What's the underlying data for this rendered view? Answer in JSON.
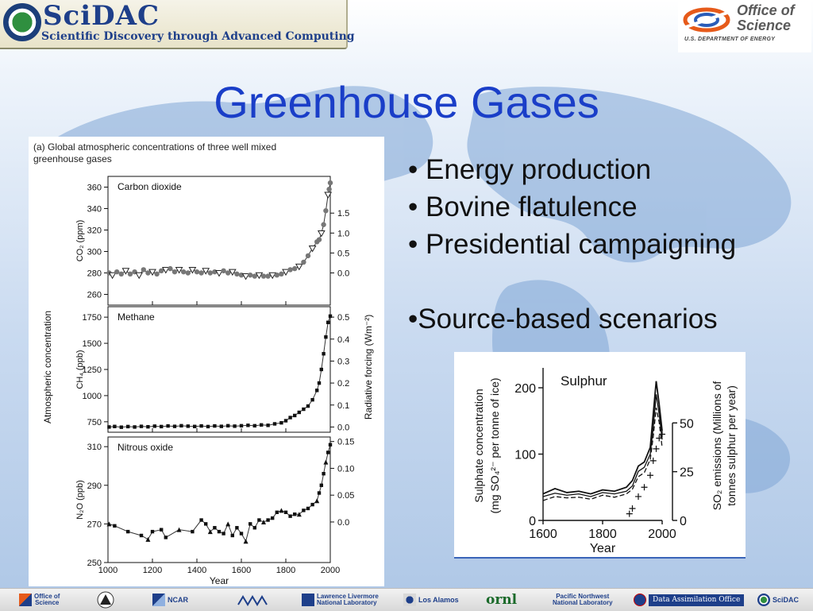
{
  "header": {
    "left_logo_title": "SciDAC",
    "left_logo_subtitle": "Scientific Discovery through Advanced Computing",
    "right_logo_title": "Office of Science",
    "right_logo_subtitle": "U.S. DEPARTMENT OF ENERGY"
  },
  "slide": {
    "title": "Greenhouse Gases",
    "bullets": [
      "• Energy production",
      "• Bovine flatulence",
      "• Presidential campaigning"
    ],
    "extra_bullet": "•Source-based scenarios"
  },
  "chart_data": [
    {
      "type": "scatter",
      "title": "(a) Global atmospheric concentrations of three well mixed greenhouse gases",
      "xlabel": "Year",
      "xlim": [
        1000,
        2000
      ],
      "x_ticks": [
        1000,
        1200,
        1400,
        1600,
        1800,
        2000
      ],
      "shared_ylabel": "Atmospheric concentration",
      "shared_y2label": "Radiative forcing (Wm⁻²)",
      "panels": [
        {
          "name": "Carbon dioxide",
          "ylabel": "CO₂ (ppm)",
          "ylim": [
            250,
            370
          ],
          "y_ticks": [
            260,
            280,
            300,
            320,
            340,
            360
          ],
          "y2_ticks": [
            "0.0",
            "0.5",
            "1.0",
            "1.5"
          ],
          "y2_values": [
            0.0,
            0.5,
            1.0,
            1.5
          ],
          "y2_zero_at": 280,
          "y2_per_unit": 0.0269,
          "color": "#777777",
          "points": [
            [
              1005,
              280
            ],
            [
              1020,
              278
            ],
            [
              1040,
              281
            ],
            [
              1060,
              279
            ],
            [
              1080,
              282
            ],
            [
              1100,
              279
            ],
            [
              1120,
              281
            ],
            [
              1140,
              278
            ],
            [
              1160,
              283
            ],
            [
              1180,
              280
            ],
            [
              1200,
              281
            ],
            [
              1220,
              279
            ],
            [
              1240,
              282
            ],
            [
              1260,
              283
            ],
            [
              1280,
              284
            ],
            [
              1300,
              281
            ],
            [
              1320,
              283
            ],
            [
              1340,
              281
            ],
            [
              1360,
              280
            ],
            [
              1380,
              283
            ],
            [
              1400,
              281
            ],
            [
              1420,
              280
            ],
            [
              1440,
              282
            ],
            [
              1460,
              280
            ],
            [
              1480,
              281
            ],
            [
              1500,
              280
            ],
            [
              1520,
              282
            ],
            [
              1540,
              280
            ],
            [
              1560,
              281
            ],
            [
              1580,
              279
            ],
            [
              1600,
              278
            ],
            [
              1620,
              277
            ],
            [
              1640,
              278
            ],
            [
              1660,
              277
            ],
            [
              1680,
              278
            ],
            [
              1700,
              277
            ],
            [
              1720,
              277
            ],
            [
              1740,
              278
            ],
            [
              1760,
              278
            ],
            [
              1780,
              279
            ],
            [
              1800,
              281
            ],
            [
              1820,
              283
            ],
            [
              1840,
              284
            ],
            [
              1860,
              286
            ],
            [
              1880,
              290
            ],
            [
              1900,
              296
            ],
            [
              1920,
              303
            ],
            [
              1940,
              309
            ],
            [
              1950,
              311
            ],
            [
              1960,
              317
            ],
            [
              1970,
              325
            ],
            [
              1980,
              338
            ],
            [
              1990,
              353
            ],
            [
              1995,
              358
            ],
            [
              2000,
              364
            ]
          ]
        },
        {
          "name": "Methane",
          "ylabel": "CH₄ (ppb)",
          "ylim": [
            650,
            1850
          ],
          "y_ticks": [
            750,
            1000,
            1250,
            1500,
            1750
          ],
          "y2_ticks": [
            "0.0",
            "0.1",
            "0.2",
            "0.3",
            "0.4",
            "0.5"
          ],
          "y2_values": [
            0.0,
            0.1,
            0.2,
            0.3,
            0.4,
            0.5
          ],
          "y2_zero_at": 700,
          "y2_per_unit": 0.000476,
          "color": "#111111",
          "points": [
            [
              1005,
              700
            ],
            [
              1030,
              705
            ],
            [
              1060,
              698
            ],
            [
              1090,
              704
            ],
            [
              1120,
              700
            ],
            [
              1150,
              706
            ],
            [
              1180,
              702
            ],
            [
              1210,
              708
            ],
            [
              1240,
              704
            ],
            [
              1270,
              710
            ],
            [
              1300,
              706
            ],
            [
              1330,
              712
            ],
            [
              1360,
              708
            ],
            [
              1390,
              705
            ],
            [
              1420,
              710
            ],
            [
              1450,
              704
            ],
            [
              1480,
              710
            ],
            [
              1510,
              706
            ],
            [
              1540,
              712
            ],
            [
              1570,
              708
            ],
            [
              1600,
              712
            ],
            [
              1630,
              716
            ],
            [
              1660,
              712
            ],
            [
              1690,
              720
            ],
            [
              1720,
              716
            ],
            [
              1750,
              730
            ],
            [
              1780,
              740
            ],
            [
              1800,
              760
            ],
            [
              1820,
              790
            ],
            [
              1840,
              810
            ],
            [
              1860,
              840
            ],
            [
              1880,
              870
            ],
            [
              1900,
              900
            ],
            [
              1920,
              960
            ],
            [
              1940,
              1050
            ],
            [
              1950,
              1120
            ],
            [
              1960,
              1250
            ],
            [
              1970,
              1400
            ],
            [
              1980,
              1560
            ],
            [
              1990,
              1700
            ],
            [
              2000,
              1760
            ]
          ]
        },
        {
          "name": "Nitrous oxide",
          "ylabel": "N₂O (ppb)",
          "ylim": [
            250,
            315
          ],
          "y_ticks": [
            250,
            270,
            290,
            310
          ],
          "y2_ticks": [
            "0.0",
            "0.05",
            "0.10",
            "0.15"
          ],
          "y2_values": [
            0.0,
            0.05,
            0.1,
            0.15
          ],
          "y2_zero_at": 271,
          "y2_per_unit": 0.0036,
          "color": "#111111",
          "points": [
            [
              1005,
              270
            ],
            [
              1030,
              269
            ],
            [
              1090,
              266
            ],
            [
              1150,
              264
            ],
            [
              1180,
              262
            ],
            [
              1200,
              266
            ],
            [
              1240,
              267
            ],
            [
              1260,
              263
            ],
            [
              1320,
              267
            ],
            [
              1380,
              266
            ],
            [
              1420,
              272
            ],
            [
              1440,
              270
            ],
            [
              1460,
              266
            ],
            [
              1480,
              268
            ],
            [
              1500,
              266
            ],
            [
              1520,
              265
            ],
            [
              1540,
              270
            ],
            [
              1560,
              264
            ],
            [
              1580,
              268
            ],
            [
              1600,
              265
            ],
            [
              1620,
              261
            ],
            [
              1640,
              270
            ],
            [
              1660,
              268
            ],
            [
              1680,
              272
            ],
            [
              1700,
              271
            ],
            [
              1720,
              272
            ],
            [
              1740,
              273
            ],
            [
              1760,
              276
            ],
            [
              1780,
              277
            ],
            [
              1800,
              276
            ],
            [
              1820,
              274
            ],
            [
              1840,
              275
            ],
            [
              1860,
              275
            ],
            [
              1880,
              277
            ],
            [
              1900,
              278
            ],
            [
              1920,
              280
            ],
            [
              1940,
              282
            ],
            [
              1950,
              286
            ],
            [
              1960,
              290
            ],
            [
              1970,
              296
            ],
            [
              1980,
              302
            ],
            [
              1990,
              307
            ],
            [
              2000,
              311
            ]
          ]
        }
      ]
    },
    {
      "type": "line",
      "title": "Sulphur",
      "xlabel": "Year",
      "ylabel": "Sulphate concentration (mg SO₄²⁻ per tonne of ice)",
      "y2label": "SO₂ emissions (Millions of tonnes sulphur per year)",
      "xlim": [
        1600,
        2000
      ],
      "ylim": [
        0,
        230
      ],
      "x_ticks": [
        1600,
        1800,
        2000
      ],
      "y_ticks": [
        0,
        100,
        200
      ],
      "y2_ticks": [
        0,
        25,
        50
      ],
      "y2_max_at": 147,
      "series": [
        {
          "values": [
            [
              1600,
              40
            ],
            [
              1640,
              48
            ],
            [
              1680,
              42
            ],
            [
              1720,
              44
            ],
            [
              1760,
              40
            ],
            [
              1800,
              46
            ],
            [
              1840,
              44
            ],
            [
              1880,
              50
            ],
            [
              1900,
              60
            ],
            [
              1920,
              82
            ],
            [
              1940,
              88
            ],
            [
              1960,
              110
            ],
            [
              1970,
              160
            ],
            [
              1980,
              210
            ],
            [
              1990,
              175
            ],
            [
              2000,
              135
            ]
          ]
        },
        {
          "values": [
            [
              1600,
              36
            ],
            [
              1640,
              41
            ],
            [
              1680,
              38
            ],
            [
              1720,
              40
            ],
            [
              1760,
              36
            ],
            [
              1800,
              42
            ],
            [
              1840,
              40
            ],
            [
              1880,
              44
            ],
            [
              1900,
              52
            ],
            [
              1920,
              74
            ],
            [
              1940,
              80
            ],
            [
              1960,
              100
            ],
            [
              1970,
              140
            ],
            [
              1980,
              190
            ],
            [
              1990,
              160
            ],
            [
              2000,
              122
            ]
          ]
        },
        {
          "values": [
            [
              1600,
              30
            ],
            [
              1640,
              36
            ],
            [
              1680,
              34
            ],
            [
              1720,
              35
            ],
            [
              1760,
              32
            ],
            [
              1800,
              38
            ],
            [
              1840,
              35
            ],
            [
              1880,
              40
            ],
            [
              1900,
              47
            ],
            [
              1920,
              66
            ],
            [
              1940,
              72
            ],
            [
              1960,
              92
            ],
            [
              1970,
              126
            ],
            [
              1980,
              170
            ],
            [
              1990,
              148
            ],
            [
              2000,
              110
            ]
          ]
        },
        {
          "values": [
            [
              1890,
              10
            ],
            [
              1900,
              18
            ],
            [
              1920,
              36
            ],
            [
              1940,
              50
            ],
            [
              1960,
              68
            ],
            [
              1970,
              90
            ],
            [
              1980,
              108
            ],
            [
              1990,
              124
            ],
            [
              2000,
              130
            ]
          ],
          "marker": "plus"
        }
      ]
    }
  ],
  "footer": {
    "logos": {
      "oos_1": "Office of",
      "oos_2": "Science",
      "ncar": "NCAR",
      "llnl_1": "Lawrence Livermore",
      "llnl_2": "National Laboratory",
      "lanl": "Los Alamos",
      "ornl": "ornl",
      "pnnl_1": "Pacific Northwest",
      "pnnl_2": "National Laboratory",
      "dao": "Data Assimilation Office",
      "scidac": "SciDAC"
    }
  }
}
